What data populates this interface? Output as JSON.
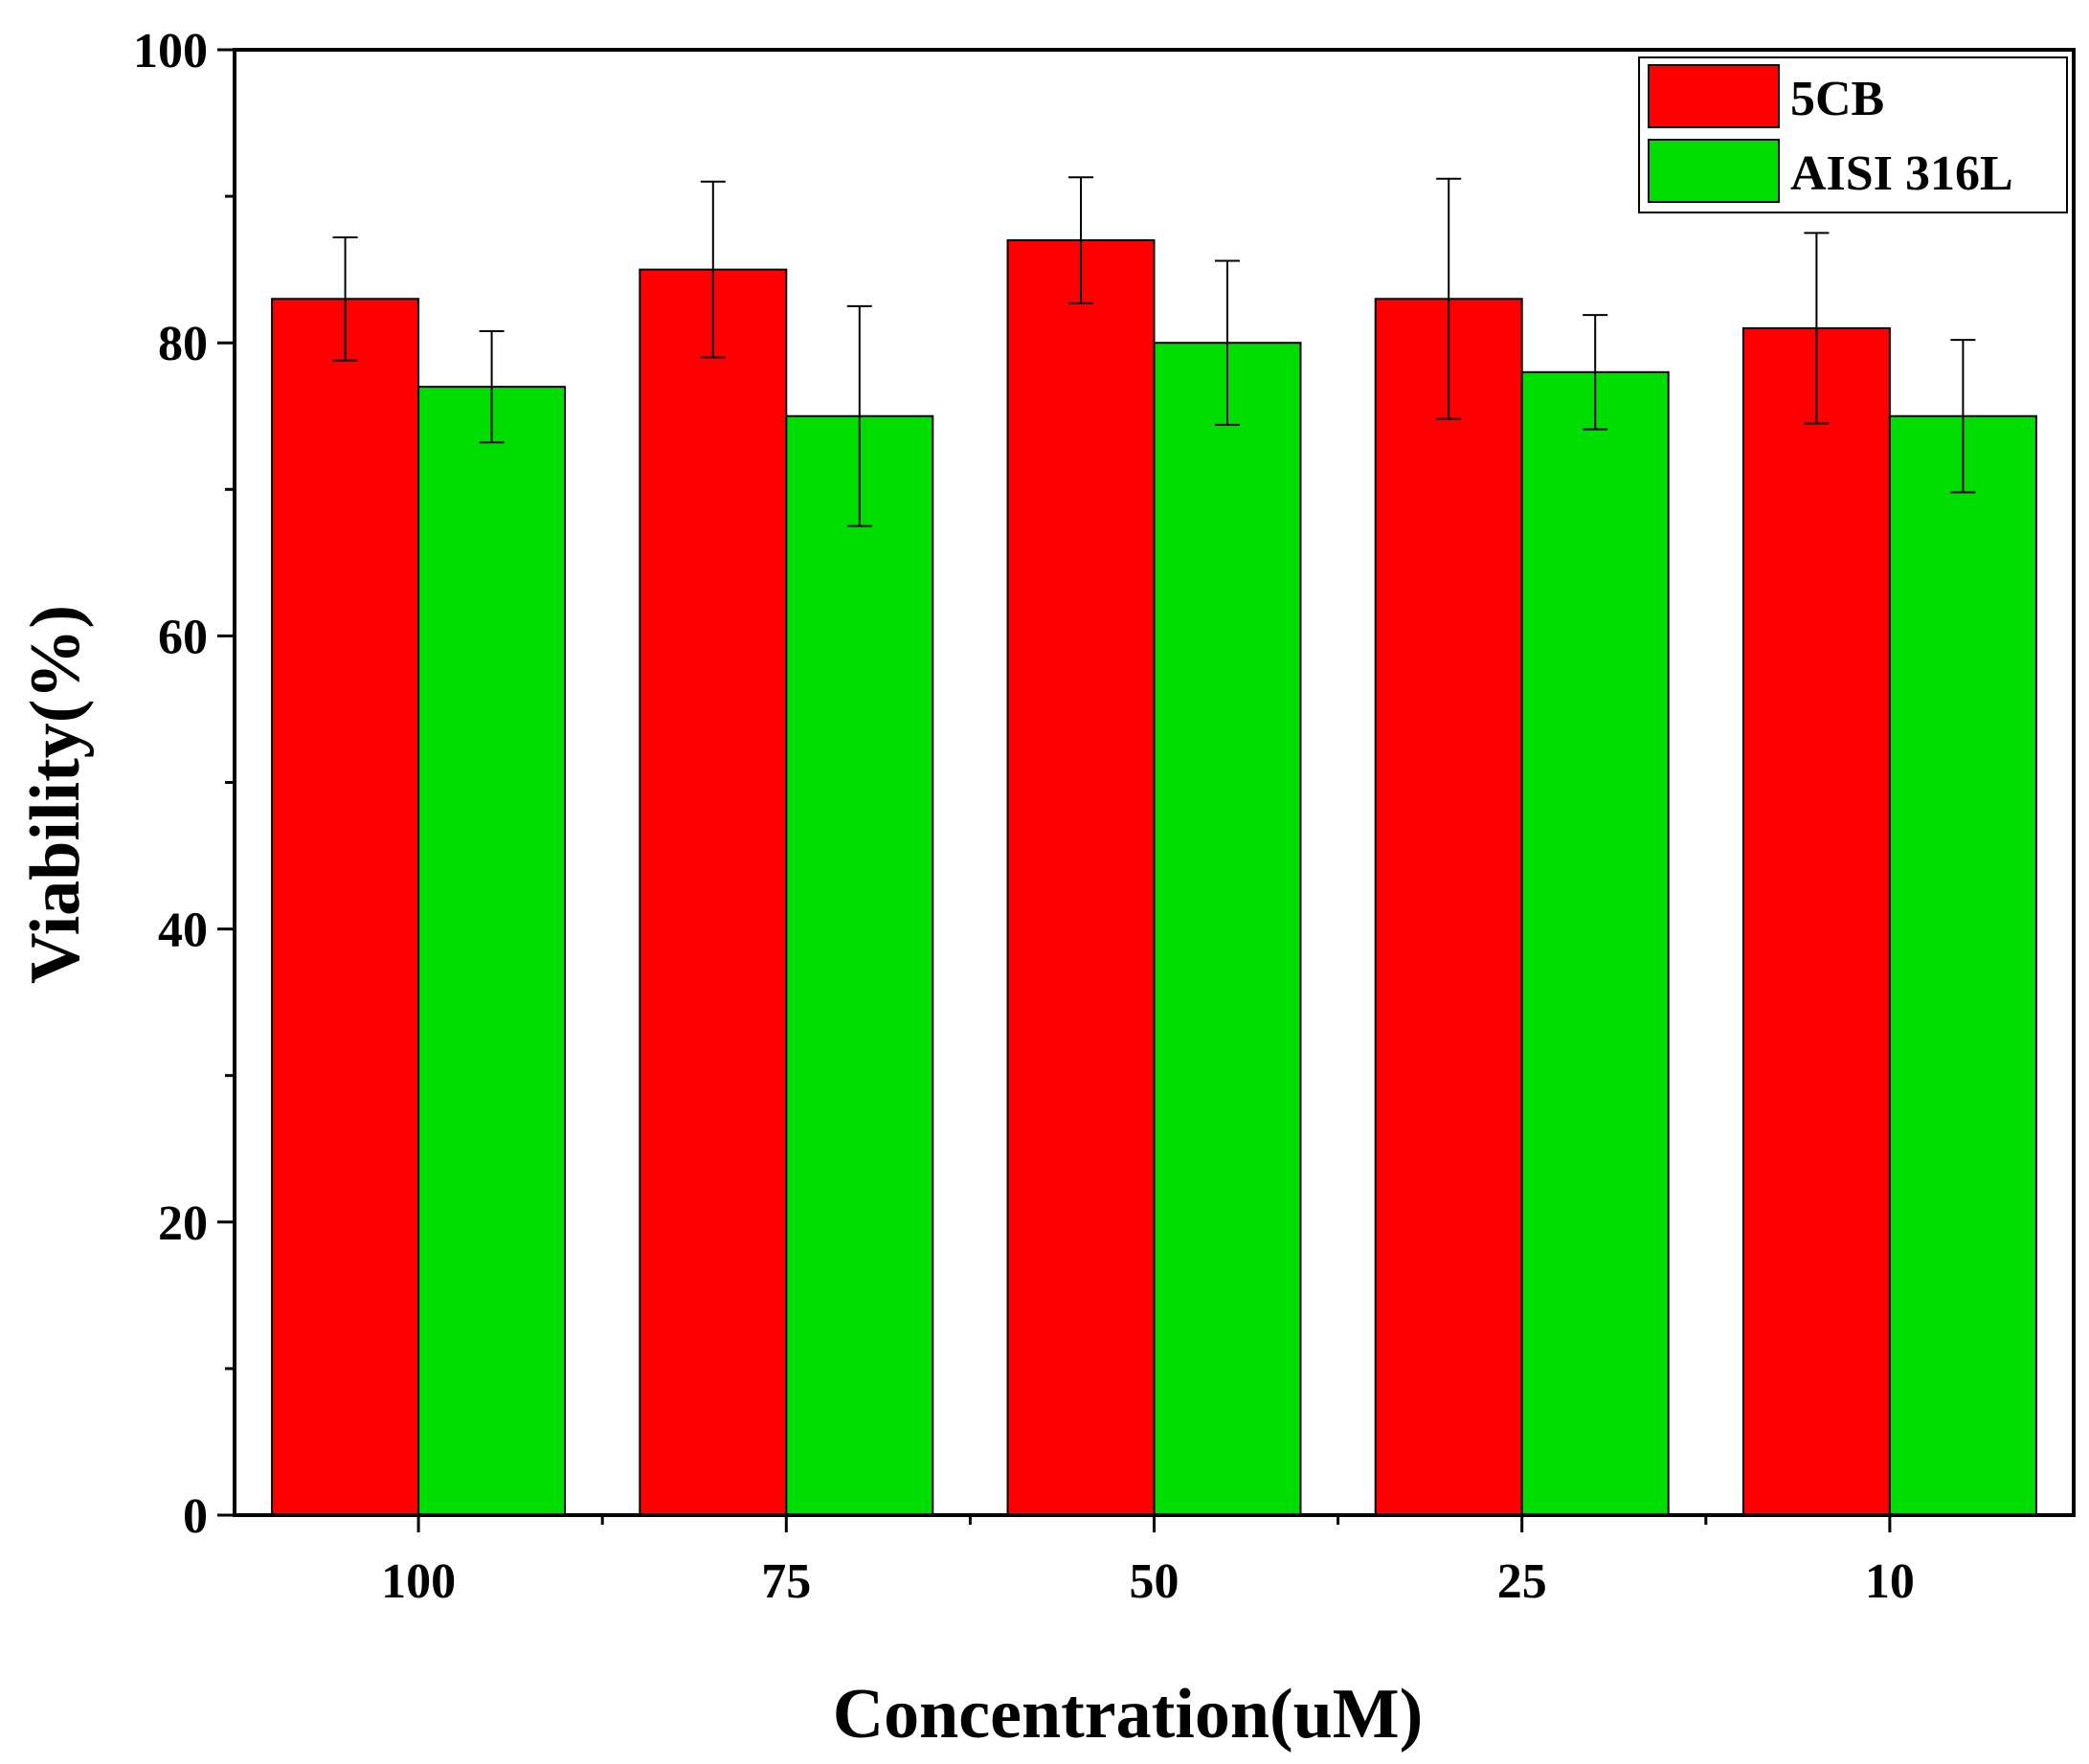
{
  "chart_data": {
    "type": "bar",
    "title": "",
    "xlabel": "Concentration(uM)",
    "ylabel": "Viability(%)",
    "categories": [
      "100",
      "75",
      "50",
      "25",
      "10"
    ],
    "ylim": [
      0,
      100
    ],
    "y_ticks": [
      "0",
      "20",
      "40",
      "60",
      "80",
      "100"
    ],
    "y_minor_tick_step": 10,
    "grid": false,
    "legend_position": "top-right",
    "series": [
      {
        "name": "5CB",
        "color": "#ff0000",
        "values": [
          83,
          85,
          87,
          83,
          81
        ],
        "errors": [
          4.2,
          6.0,
          4.3,
          8.2,
          6.5
        ]
      },
      {
        "name": "AISI 316L",
        "color": "#00dd00",
        "values": [
          77,
          75,
          80,
          78,
          75
        ],
        "errors": [
          3.8,
          7.5,
          5.6,
          3.9,
          5.2
        ]
      }
    ]
  }
}
